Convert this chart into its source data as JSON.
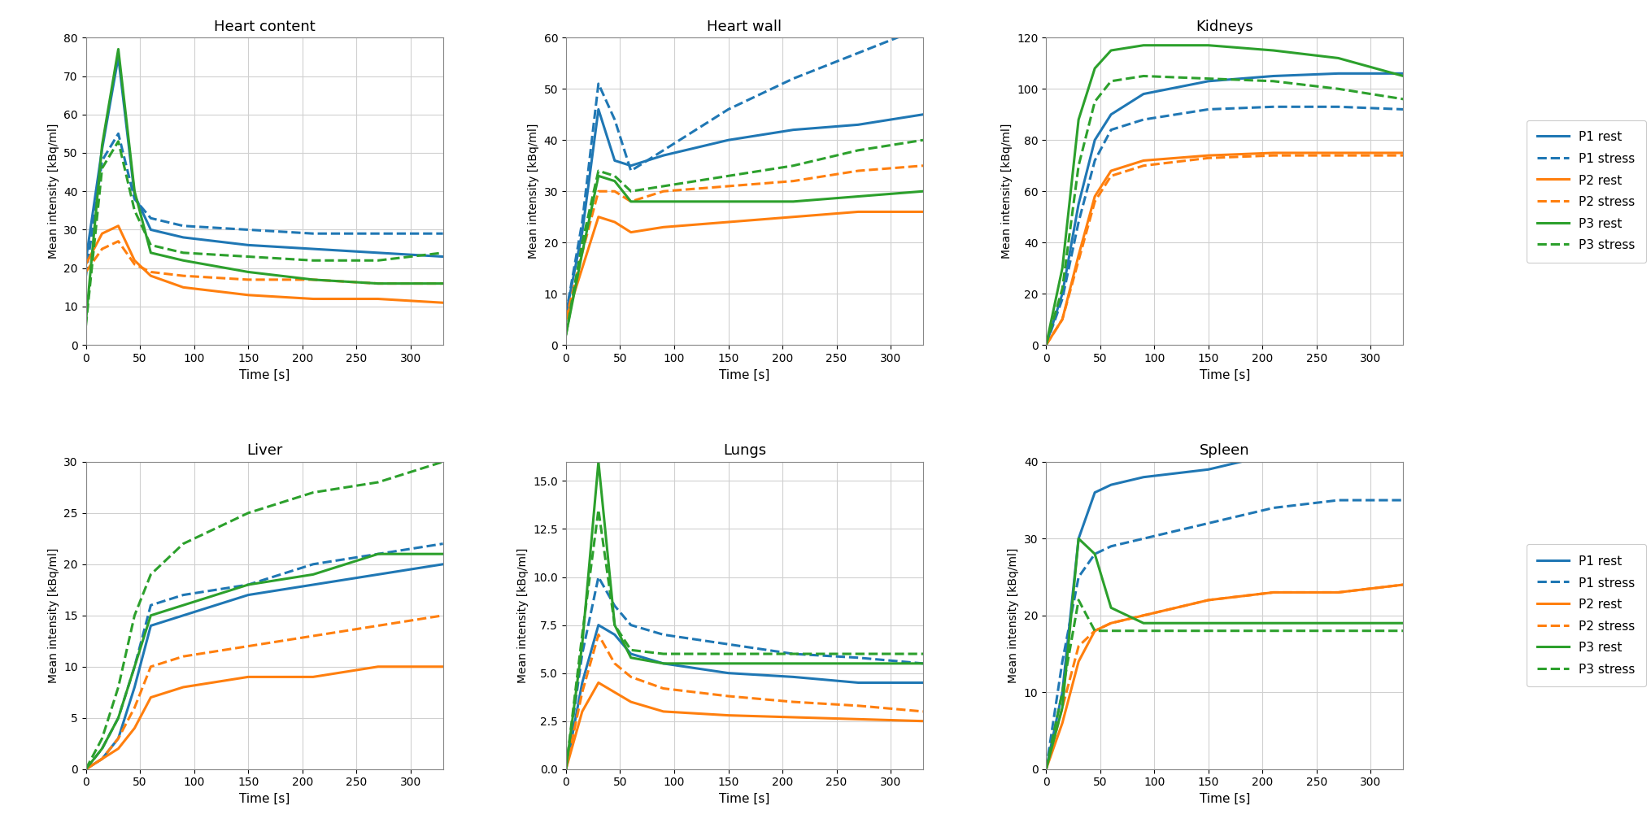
{
  "colors": {
    "P1": "#1f77b4",
    "P2": "#ff7f0e",
    "P3": "#2ca02c"
  },
  "time": [
    0,
    15,
    30,
    45,
    60,
    90,
    150,
    210,
    270,
    330
  ],
  "heart_content": {
    "P1_rest": [
      22,
      51,
      75,
      39,
      30,
      28,
      26,
      25,
      24,
      23
    ],
    "P1_stress": [
      18,
      48,
      55,
      38,
      33,
      31,
      30,
      29,
      29,
      29
    ],
    "P2_rest": [
      21,
      29,
      31,
      22,
      18,
      15,
      13,
      12,
      12,
      11
    ],
    "P2_stress": [
      19,
      25,
      27,
      21,
      19,
      18,
      17,
      17,
      16,
      16
    ],
    "P3_rest": [
      6,
      52,
      77,
      40,
      24,
      22,
      19,
      17,
      16,
      16
    ],
    "P3_stress": [
      5,
      46,
      53,
      35,
      26,
      24,
      23,
      22,
      22,
      24
    ]
  },
  "heart_wall": {
    "P1_rest": [
      6,
      22,
      46,
      36,
      35,
      37,
      40,
      42,
      43,
      45
    ],
    "P1_stress": [
      6,
      24,
      51,
      44,
      34,
      38,
      46,
      52,
      57,
      62
    ],
    "P2_rest": [
      5,
      15,
      25,
      24,
      22,
      23,
      24,
      25,
      26,
      26
    ],
    "P2_stress": [
      5,
      18,
      30,
      30,
      28,
      30,
      31,
      32,
      34,
      35
    ],
    "P3_rest": [
      2,
      18,
      33,
      32,
      28,
      28,
      28,
      28,
      29,
      30
    ],
    "P3_stress": [
      2,
      20,
      34,
      33,
      30,
      31,
      33,
      35,
      38,
      40
    ]
  },
  "kidneys": {
    "P1_rest": [
      0,
      20,
      55,
      80,
      90,
      98,
      103,
      105,
      106,
      106
    ],
    "P1_stress": [
      0,
      18,
      48,
      72,
      84,
      88,
      92,
      93,
      93,
      92
    ],
    "P2_rest": [
      0,
      10,
      35,
      58,
      68,
      72,
      74,
      75,
      75,
      75
    ],
    "P2_stress": [
      0,
      10,
      33,
      56,
      66,
      70,
      73,
      74,
      74,
      74
    ],
    "P3_rest": [
      0,
      30,
      88,
      108,
      115,
      117,
      117,
      115,
      112,
      105
    ],
    "P3_stress": [
      0,
      22,
      70,
      95,
      103,
      105,
      104,
      103,
      100,
      96
    ]
  },
  "liver": {
    "P1_rest": [
      0,
      1,
      3,
      8,
      14,
      15,
      17,
      18,
      19,
      20
    ],
    "P1_stress": [
      0,
      2,
      5,
      10,
      16,
      17,
      18,
      20,
      21,
      22
    ],
    "P2_rest": [
      0,
      1,
      2,
      4,
      7,
      8,
      9,
      9,
      10,
      10
    ],
    "P2_stress": [
      0,
      1,
      3,
      6,
      10,
      11,
      12,
      13,
      14,
      15
    ],
    "P3_rest": [
      0,
      2,
      5,
      10,
      15,
      16,
      18,
      19,
      21,
      21
    ],
    "P3_stress": [
      0,
      3,
      8,
      15,
      19,
      22,
      25,
      27,
      28,
      30
    ]
  },
  "lungs": {
    "P1_rest": [
      0,
      4.5,
      7.5,
      7.0,
      6.0,
      5.5,
      5.0,
      4.8,
      4.5,
      4.5
    ],
    "P1_stress": [
      0,
      6.0,
      10.0,
      8.5,
      7.5,
      7.0,
      6.5,
      6.0,
      5.8,
      5.5
    ],
    "P2_rest": [
      0,
      3.0,
      4.5,
      4.0,
      3.5,
      3.0,
      2.8,
      2.7,
      2.6,
      2.5
    ],
    "P2_stress": [
      0,
      4.0,
      7.0,
      5.5,
      4.8,
      4.2,
      3.8,
      3.5,
      3.3,
      3.0
    ],
    "P3_rest": [
      0,
      6.5,
      16.0,
      7.5,
      5.8,
      5.5,
      5.5,
      5.5,
      5.5,
      5.5
    ],
    "P3_stress": [
      0,
      7.0,
      13.5,
      7.5,
      6.2,
      6.0,
      6.0,
      6.0,
      6.0,
      6.0
    ]
  },
  "spleen": {
    "P1_rest": [
      0,
      10,
      30,
      36,
      37,
      38,
      39,
      41,
      41,
      41
    ],
    "P1_stress": [
      0,
      14,
      25,
      28,
      29,
      30,
      32,
      34,
      35,
      35
    ],
    "P2_rest": [
      0,
      6,
      14,
      18,
      19,
      20,
      22,
      23,
      23,
      24
    ],
    "P2_stress": [
      0,
      8,
      16,
      18,
      19,
      20,
      22,
      23,
      23,
      24
    ],
    "P3_rest": [
      0,
      8,
      30,
      28,
      21,
      19,
      19,
      19,
      19,
      19
    ],
    "P3_stress": [
      0,
      10,
      22,
      18,
      18,
      18,
      18,
      18,
      18,
      18
    ]
  },
  "ylims": {
    "heart_content": [
      0,
      80
    ],
    "heart_wall": [
      0,
      60
    ],
    "kidneys": [
      0,
      120
    ],
    "liver": [
      0,
      30
    ],
    "lungs": [
      0,
      16
    ],
    "spleen": [
      0,
      40
    ]
  },
  "yticks": {
    "heart_content": [
      0,
      10,
      20,
      30,
      40,
      50,
      60,
      70,
      80
    ],
    "heart_wall": [
      0,
      10,
      20,
      30,
      40,
      50,
      60
    ],
    "kidneys": [
      0,
      20,
      40,
      60,
      80,
      100,
      120
    ],
    "liver": [
      0,
      5,
      10,
      15,
      20,
      25,
      30
    ],
    "lungs": [
      0.0,
      2.5,
      5.0,
      7.5,
      10.0,
      12.5,
      15.0
    ],
    "spleen": [
      0,
      10,
      20,
      30,
      40
    ]
  },
  "title_fontsize": 13,
  "label_fontsize": 11,
  "ylabel_fontsize": 10,
  "legend_fontsize": 11,
  "linewidth": 2.2
}
